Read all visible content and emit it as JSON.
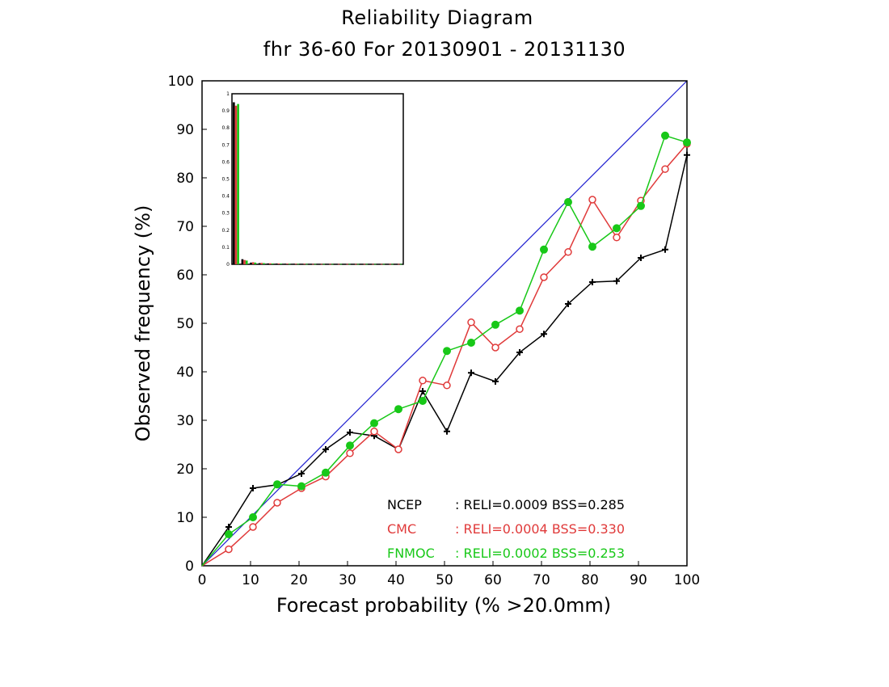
{
  "chart_data": {
    "type": "line",
    "title": "Reliability Diagram",
    "subtitle": "fhr 36-60 For 20130901 - 20131130",
    "xlabel": "Forecast probability (% >20.0mm)",
    "ylabel": "Observed frequency (%)",
    "xlim": [
      0,
      100
    ],
    "ylim": [
      0,
      100
    ],
    "xticks": [
      "0",
      "10",
      "20",
      "30",
      "40",
      "50",
      "60",
      "70",
      "80",
      "90",
      "100"
    ],
    "yticks": [
      "0",
      "10",
      "20",
      "30",
      "40",
      "50",
      "60",
      "70",
      "80",
      "90",
      "100"
    ],
    "grid": false,
    "diagonal": {
      "x": [
        0,
        100
      ],
      "y": [
        0,
        100
      ],
      "color": "#1f1fd0"
    },
    "series": [
      {
        "name": "NCEP",
        "stats": ": RELI=0.0009 BSS=0.285",
        "color": "#000000",
        "marker": "plus",
        "x": [
          0,
          5.5,
          10.5,
          15.5,
          20.5,
          25.5,
          30.5,
          35.5,
          40.5,
          45.5,
          50.5,
          55.5,
          60.5,
          65.5,
          70.5,
          75.5,
          80.5,
          85.5,
          90.5,
          95.5,
          100
        ],
        "y": [
          0,
          8,
          16,
          16.7,
          19,
          24,
          27.5,
          26.8,
          24,
          36,
          27.7,
          39.8,
          38,
          44,
          47.8,
          54,
          58.5,
          58.7,
          63.5,
          65.2,
          84.7
        ]
      },
      {
        "name": "CMC",
        "stats": ": RELI=0.0004 BSS=0.330",
        "color": "#e03a3a",
        "marker": "open-circle",
        "x": [
          0,
          5.5,
          10.5,
          15.5,
          20.5,
          25.5,
          30.5,
          35.5,
          40.5,
          45.5,
          50.5,
          55.5,
          60.5,
          65.5,
          70.5,
          75.5,
          80.5,
          85.5,
          90.5,
          95.5,
          100
        ],
        "y": [
          0,
          3.4,
          8,
          13,
          16,
          18.4,
          23.2,
          27.7,
          24,
          38.2,
          37.2,
          50.2,
          45,
          48.8,
          59.5,
          64.7,
          75.5,
          67.7,
          75.3,
          81.8,
          87
        ]
      },
      {
        "name": "FNMOC",
        "stats": ": RELI=0.0002 BSS=0.253",
        "color": "#18c818",
        "marker": "filled-circle",
        "x": [
          0,
          5.5,
          10.5,
          15.5,
          20.5,
          25.5,
          30.5,
          35.5,
          40.5,
          45.5,
          50.5,
          55.5,
          60.5,
          65.5,
          70.5,
          75.5,
          80.5,
          85.5,
          90.5,
          95.5,
          100
        ],
        "y": [
          0,
          6.5,
          10,
          16.8,
          16.4,
          19.2,
          24.8,
          29.4,
          32.3,
          34,
          44.3,
          46,
          49.7,
          52.6,
          65.2,
          75,
          65.8,
          69.6,
          74.2,
          88.7,
          87.3
        ]
      }
    ],
    "legend_position": "bottom-right",
    "inset": {
      "type": "bar",
      "description_position": "top-left",
      "ylim": [
        0,
        1
      ],
      "yticks": [
        "0",
        "0.1",
        "0.2",
        "0.3",
        "0.4",
        "0.5",
        "0.6",
        "0.7",
        "0.8",
        "0.9",
        "1"
      ],
      "bins": 20,
      "series": [
        {
          "name": "NCEP",
          "color": "#000000",
          "values": [
            0.95,
            0.03,
            0.01,
            0.007,
            0.005,
            0.004,
            0.003,
            0.003,
            0.002,
            0.002,
            0.002,
            0.002,
            0.002,
            0.002,
            0.002,
            0.002,
            0.002,
            0.002,
            0.002,
            0.002
          ]
        },
        {
          "name": "CMC",
          "color": "#e03a3a",
          "values": [
            0.93,
            0.025,
            0.012,
            0.008,
            0.006,
            0.005,
            0.004,
            0.003,
            0.003,
            0.002,
            0.002,
            0.002,
            0.002,
            0.002,
            0.002,
            0.002,
            0.002,
            0.002,
            0.002,
            0.002
          ]
        },
        {
          "name": "FNMOC",
          "color": "#18c818",
          "values": [
            0.94,
            0.022,
            0.01,
            0.007,
            0.005,
            0.004,
            0.003,
            0.003,
            0.002,
            0.002,
            0.002,
            0.002,
            0.002,
            0.002,
            0.002,
            0.002,
            0.002,
            0.002,
            0.002,
            0.002
          ]
        }
      ]
    }
  }
}
